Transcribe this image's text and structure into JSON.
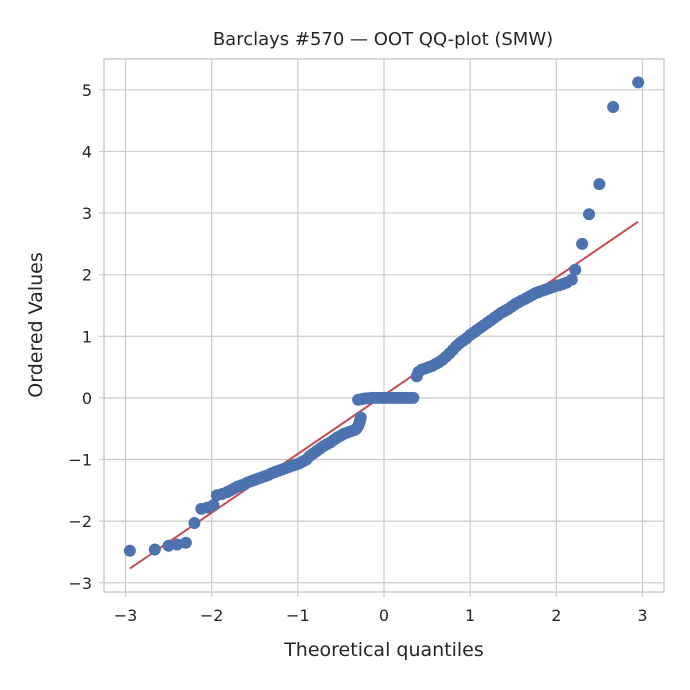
{
  "chart_data": {
    "type": "scatter",
    "title": "Barclays #570 — OOT QQ-plot (SMW)",
    "xlabel": "Theoretical quantiles",
    "ylabel": "Ordered Values",
    "xlim": [
      -3.25,
      3.25
    ],
    "ylim": [
      -3.15,
      5.5
    ],
    "xticks": [
      -3,
      -2,
      -1,
      0,
      1,
      2,
      3
    ],
    "xtick_labels": [
      "−3",
      "−2",
      "−1",
      "0",
      "1",
      "2",
      "3"
    ],
    "yticks": [
      -3,
      -2,
      -1,
      0,
      1,
      2,
      3,
      4,
      5
    ],
    "ytick_labels": [
      "−3",
      "−2",
      "−1",
      "0",
      "1",
      "2",
      "3",
      "4",
      "5"
    ],
    "grid": true,
    "marker_color": "#4c72b0",
    "line_color": "#c44e52",
    "fit_line": {
      "x": [
        -2.95,
        2.95
      ],
      "y": [
        -2.77,
        2.86
      ]
    },
    "points": [
      [
        -2.95,
        -2.48
      ],
      [
        -2.66,
        -2.46
      ],
      [
        -2.5,
        -2.4
      ],
      [
        -2.4,
        -2.38
      ],
      [
        -2.3,
        -2.35
      ],
      [
        -2.2,
        -2.03
      ],
      [
        -2.12,
        -1.8
      ],
      [
        -2.05,
        -1.78
      ],
      [
        -1.98,
        -1.74
      ],
      [
        -1.94,
        -1.58
      ],
      [
        -1.88,
        -1.56
      ],
      [
        -1.82,
        -1.53
      ],
      [
        -1.78,
        -1.5
      ],
      [
        -1.74,
        -1.47
      ],
      [
        -1.7,
        -1.44
      ],
      [
        -1.66,
        -1.42
      ],
      [
        -1.62,
        -1.4
      ],
      [
        -1.58,
        -1.37
      ],
      [
        -1.54,
        -1.35
      ],
      [
        -1.5,
        -1.33
      ],
      [
        -1.46,
        -1.31
      ],
      [
        -1.42,
        -1.29
      ],
      [
        -1.38,
        -1.27
      ],
      [
        -1.34,
        -1.25
      ],
      [
        -1.3,
        -1.22
      ],
      [
        -1.26,
        -1.2
      ],
      [
        -1.22,
        -1.18
      ],
      [
        -1.18,
        -1.16
      ],
      [
        -1.14,
        -1.14
      ],
      [
        -1.1,
        -1.12
      ],
      [
        -1.06,
        -1.1
      ],
      [
        -1.02,
        -1.08
      ],
      [
        -0.98,
        -1.06
      ],
      [
        -0.94,
        -1.03
      ],
      [
        -0.9,
        -1.0
      ],
      [
        -0.86,
        -0.94
      ],
      [
        -0.82,
        -0.9
      ],
      [
        -0.78,
        -0.86
      ],
      [
        -0.74,
        -0.82
      ],
      [
        -0.7,
        -0.78
      ],
      [
        -0.66,
        -0.75
      ],
      [
        -0.62,
        -0.72
      ],
      [
        -0.58,
        -0.68
      ],
      [
        -0.54,
        -0.64
      ],
      [
        -0.5,
        -0.61
      ],
      [
        -0.46,
        -0.58
      ],
      [
        -0.42,
        -0.56
      ],
      [
        -0.38,
        -0.54
      ],
      [
        -0.34,
        -0.52
      ],
      [
        -0.32,
        -0.5
      ],
      [
        -0.3,
        -0.46
      ],
      [
        -0.29,
        -0.42
      ],
      [
        -0.28,
        -0.38
      ],
      [
        -0.27,
        -0.32
      ],
      [
        -0.3,
        -0.03
      ],
      [
        -0.26,
        -0.02
      ],
      [
        -0.22,
        -0.01
      ],
      [
        -0.18,
        -0.005
      ],
      [
        -0.14,
        0.0
      ],
      [
        -0.1,
        0.0
      ],
      [
        -0.06,
        0.0
      ],
      [
        -0.02,
        0.0
      ],
      [
        0.02,
        0.0
      ],
      [
        0.06,
        0.0
      ],
      [
        0.1,
        0.0
      ],
      [
        0.14,
        0.0
      ],
      [
        0.18,
        0.0
      ],
      [
        0.22,
        0.0
      ],
      [
        0.26,
        0.0
      ],
      [
        0.3,
        0.0
      ],
      [
        0.34,
        0.0
      ],
      [
        0.38,
        0.35
      ],
      [
        0.4,
        0.42
      ],
      [
        0.44,
        0.46
      ],
      [
        0.48,
        0.48
      ],
      [
        0.52,
        0.5
      ],
      [
        0.56,
        0.52
      ],
      [
        0.6,
        0.55
      ],
      [
        0.64,
        0.58
      ],
      [
        0.68,
        0.62
      ],
      [
        0.72,
        0.67
      ],
      [
        0.76,
        0.72
      ],
      [
        0.8,
        0.78
      ],
      [
        0.84,
        0.84
      ],
      [
        0.88,
        0.89
      ],
      [
        0.92,
        0.93
      ],
      [
        0.96,
        0.97
      ],
      [
        1.0,
        1.02
      ],
      [
        1.04,
        1.06
      ],
      [
        1.08,
        1.1
      ],
      [
        1.12,
        1.14
      ],
      [
        1.16,
        1.18
      ],
      [
        1.2,
        1.22
      ],
      [
        1.24,
        1.26
      ],
      [
        1.28,
        1.3
      ],
      [
        1.32,
        1.34
      ],
      [
        1.36,
        1.38
      ],
      [
        1.4,
        1.41
      ],
      [
        1.44,
        1.44
      ],
      [
        1.48,
        1.48
      ],
      [
        1.52,
        1.52
      ],
      [
        1.56,
        1.55
      ],
      [
        1.6,
        1.58
      ],
      [
        1.64,
        1.61
      ],
      [
        1.68,
        1.64
      ],
      [
        1.72,
        1.67
      ],
      [
        1.76,
        1.7
      ],
      [
        1.8,
        1.72
      ],
      [
        1.84,
        1.74
      ],
      [
        1.88,
        1.76
      ],
      [
        1.92,
        1.78
      ],
      [
        1.96,
        1.8
      ],
      [
        2.0,
        1.82
      ],
      [
        2.04,
        1.83
      ],
      [
        2.08,
        1.85
      ],
      [
        2.12,
        1.87
      ],
      [
        2.18,
        1.92
      ],
      [
        2.22,
        2.08
      ],
      [
        2.3,
        2.5
      ],
      [
        2.38,
        2.98
      ],
      [
        2.5,
        3.47
      ],
      [
        2.66,
        4.72
      ],
      [
        2.95,
        5.12
      ]
    ]
  }
}
